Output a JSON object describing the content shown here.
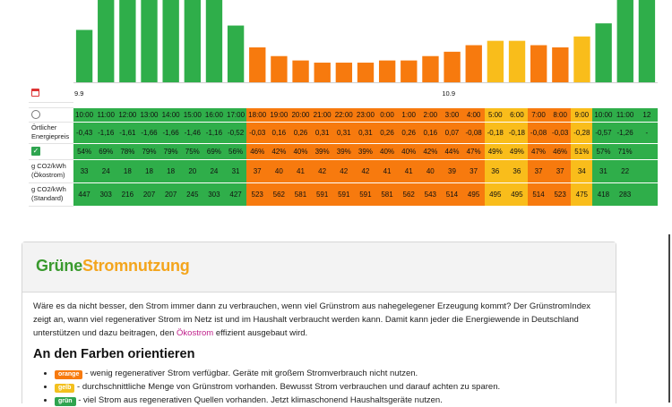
{
  "grid": {
    "dates": [
      {
        "label": "9.9",
        "col": 0
      },
      {
        "label": "10.9",
        "col": 17
      }
    ],
    "times": [
      "10:00",
      "11:00",
      "12:00",
      "13:00",
      "14:00",
      "15:00",
      "16:00",
      "17:00",
      "18:00",
      "19:00",
      "20:00",
      "21:00",
      "22:00",
      "23:00",
      "0:00",
      "1:00",
      "2:00",
      "3:00",
      "4:00",
      "5:00",
      "6:00",
      "7:00",
      "8:00",
      "9:00",
      "10:00",
      "11:00",
      "12"
    ],
    "colors": [
      "g",
      "g",
      "g",
      "g",
      "g",
      "g",
      "g",
      "g",
      "o",
      "o",
      "o",
      "o",
      "o",
      "o",
      "o",
      "o",
      "o",
      "o",
      "o",
      "y",
      "y",
      "o",
      "o",
      "y",
      "g",
      "g",
      "g"
    ],
    "labels": {
      "price": "Örtlicher Energiepreis",
      "co2_eco": "g CO2/kWh (Ökostrom)",
      "co2_std": "g CO2/kWh (Standard)"
    },
    "price": [
      "-0,43",
      "-1,16",
      "-1,61",
      "-1,66",
      "-1,66",
      "-1,46",
      "-1,16",
      "-0,52",
      "-0,03",
      "0,16",
      "0,26",
      "0,31",
      "0,31",
      "0,31",
      "0,26",
      "0,26",
      "0,16",
      "0,07",
      "-0,08",
      "-0,18",
      "-0,18",
      "-0,08",
      "-0,03",
      "-0,28",
      "-0,57",
      "-1,26",
      "-"
    ],
    "green_share": [
      "54%",
      "69%",
      "78%",
      "79%",
      "79%",
      "75%",
      "69%",
      "56%",
      "46%",
      "42%",
      "40%",
      "39%",
      "39%",
      "39%",
      "40%",
      "40%",
      "42%",
      "44%",
      "47%",
      "49%",
      "49%",
      "47%",
      "46%",
      "51%",
      "57%",
      "71%",
      ""
    ],
    "co2_eco": [
      "33",
      "24",
      "18",
      "18",
      "18",
      "20",
      "24",
      "31",
      "37",
      "40",
      "41",
      "42",
      "42",
      "42",
      "41",
      "41",
      "40",
      "39",
      "37",
      "36",
      "36",
      "37",
      "37",
      "34",
      "31",
      "22",
      ""
    ],
    "co2_std": [
      "447",
      "303",
      "216",
      "207",
      "207",
      "245",
      "303",
      "427",
      "523",
      "562",
      "581",
      "591",
      "591",
      "591",
      "581",
      "562",
      "543",
      "514",
      "495",
      "495",
      "495",
      "514",
      "523",
      "475",
      "418",
      "283",
      ""
    ]
  },
  "chart_data": {
    "type": "bar",
    "categories": [
      "10:00",
      "11:00",
      "12:00",
      "13:00",
      "14:00",
      "15:00",
      "16:00",
      "17:00",
      "18:00",
      "19:00",
      "20:00",
      "21:00",
      "22:00",
      "23:00",
      "0:00",
      "1:00",
      "2:00",
      "3:00",
      "4:00",
      "5:00",
      "6:00",
      "7:00",
      "8:00",
      "9:00",
      "10:00",
      "11:00",
      "12"
    ],
    "values": [
      54,
      69,
      78,
      79,
      79,
      75,
      69,
      56,
      46,
      42,
      40,
      39,
      39,
      39,
      40,
      40,
      42,
      44,
      47,
      49,
      49,
      47,
      46,
      51,
      57,
      71,
      76
    ],
    "colors": {
      "g": "#2fae4a",
      "o": "#f77a0e",
      "y": "#f9bd1b"
    }
  },
  "bottom": {
    "logo_part1": "Grüne",
    "logo_part2": "Stromnutzung",
    "intro_before": "Wäre es da nicht besser, den Strom immer dann zu verbrauchen, wenn viel Grünstrom aus nahegelegener Erzeugung kommt?  Der GrünstromIndex zeigt an, wann viel regenerativer Strom im Netz ist und im Haushalt verbraucht werden kann. Damit kann jeder die Energiewende in Deutschland unterstützen und dazu beitragen, den ",
    "intro_link": "Ökostrom",
    "intro_after": " effizient ausgebaut wird.",
    "heading": "An den Farben orientieren",
    "legend": [
      {
        "badge": "orange",
        "text": " - wenig regenerativer Strom verfügbar. Geräte mit großem Stromverbrauch nicht nutzen."
      },
      {
        "badge": "gelb",
        "text": " - durchschnittliche Menge von Grünstrom vorhanden. Bewusst Strom verbrauchen und darauf achten zu sparen."
      },
      {
        "badge": "grün",
        "text": " - viel Strom aus regenerativen Quellen vorhanden. Jetzt klimaschonend Haushaltsgeräte nutzen."
      }
    ]
  }
}
